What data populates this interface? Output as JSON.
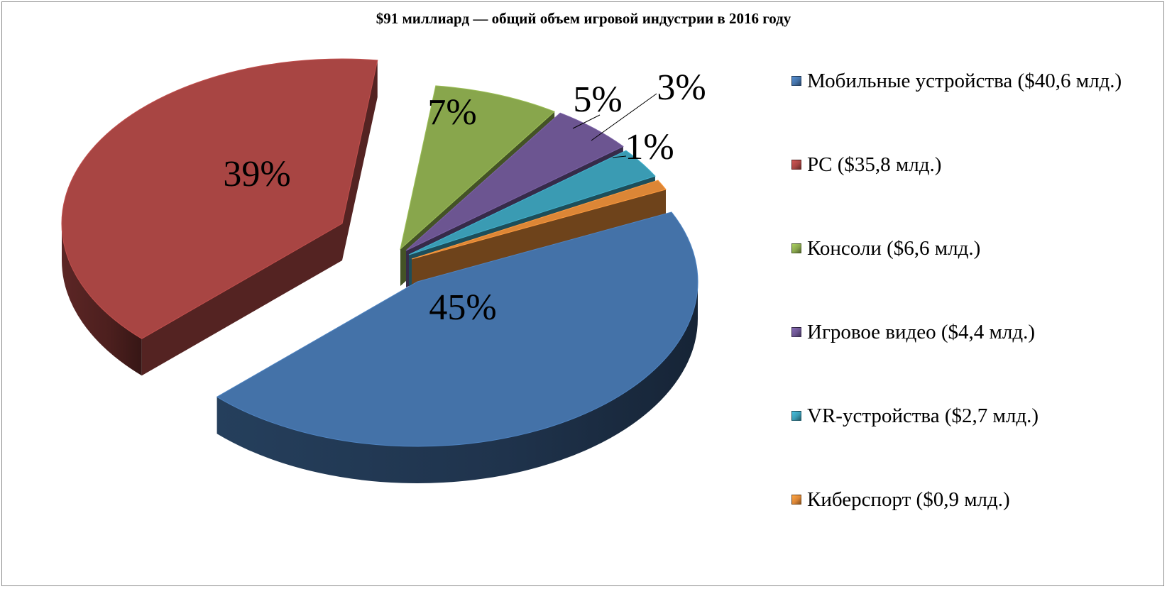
{
  "chart_data": {
    "type": "pie",
    "title": "$91 миллиард — общий объем игровой индустрии в 2016 году",
    "slices": [
      {
        "name": "Мобильные устройства ($40,6 млд.)",
        "value": 40.6,
        "percent_label": "45%",
        "color": "#4472a8"
      },
      {
        "name": "PC ($35,8 млд.)",
        "value": 35.8,
        "percent_label": "39%",
        "color": "#a84543"
      },
      {
        "name": "Консоли ($6,6 млд.)",
        "value": 6.6,
        "percent_label": "7%",
        "color": "#88a64c"
      },
      {
        "name": "Игровое видео ($4,4 млд.)",
        "value": 4.4,
        "percent_label": "5%",
        "color": "#6c5591"
      },
      {
        "name": "VR-устройства ($2,7 млд.)",
        "value": 2.7,
        "percent_label": "3%",
        "color": "#3a9bb3"
      },
      {
        "name": "Киберспорт ($0,9 млд.)",
        "value": 0.9,
        "percent_label": "1%",
        "color": "#dc8636"
      }
    ],
    "legend_position": "right",
    "style": "3d-exploded"
  }
}
